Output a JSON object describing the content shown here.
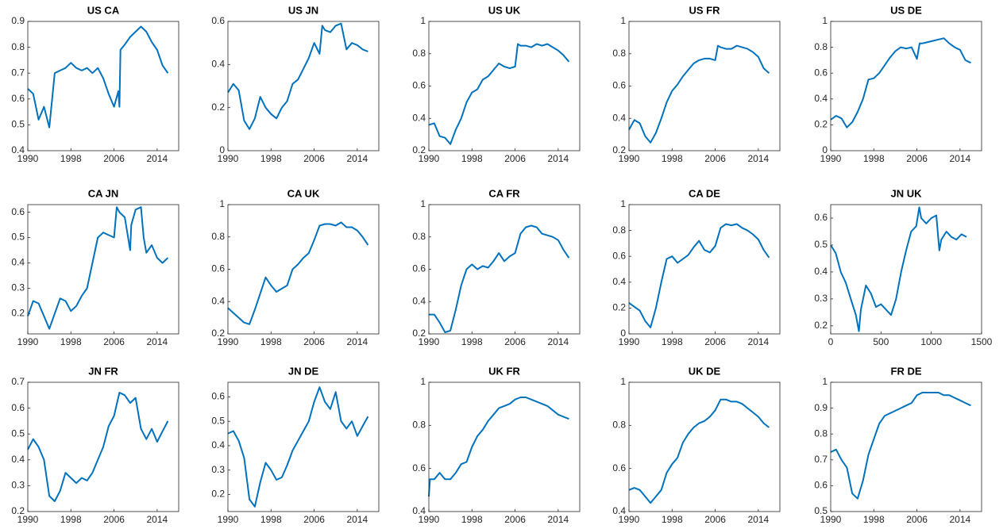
{
  "chart_data": [
    {
      "type": "line",
      "title": "US CA",
      "color": "#0072bd",
      "xlim": [
        1990,
        2018
      ],
      "xticks": [
        1990,
        1998,
        2006,
        2014
      ],
      "ylim": [
        0.4,
        0.9
      ],
      "yticks": [
        0.4,
        0.5,
        0.6,
        0.7,
        0.8,
        0.9
      ],
      "x": [
        1990,
        1991,
        1992,
        1993,
        1994,
        1995,
        1996,
        1997,
        1998,
        1999,
        2000,
        2001,
        2002,
        2003,
        2004,
        2005,
        2006,
        2006.8,
        2007,
        2007.2,
        2008,
        2009,
        2010,
        2011,
        2012,
        2013,
        2014,
        2015,
        2016
      ],
      "values": [
        0.64,
        0.62,
        0.52,
        0.57,
        0.49,
        0.7,
        0.71,
        0.72,
        0.74,
        0.72,
        0.71,
        0.72,
        0.7,
        0.72,
        0.68,
        0.62,
        0.57,
        0.63,
        0.57,
        0.79,
        0.81,
        0.84,
        0.86,
        0.88,
        0.86,
        0.82,
        0.79,
        0.73,
        0.7
      ]
    },
    {
      "type": "line",
      "title": "US JN",
      "color": "#0072bd",
      "xlim": [
        1990,
        2018
      ],
      "xticks": [
        1990,
        1998,
        2006,
        2014
      ],
      "ylim": [
        0,
        0.6
      ],
      "yticks": [
        0,
        0.2,
        0.4,
        0.6
      ],
      "x": [
        1990,
        1991,
        1992,
        1993,
        1994,
        1995,
        1996,
        1997,
        1998,
        1999,
        2000,
        2001,
        2002,
        2003,
        2004,
        2005,
        2006,
        2007,
        2007.5,
        2008,
        2009,
        2010,
        2011,
        2012,
        2013,
        2014,
        2015,
        2016
      ],
      "values": [
        0.27,
        0.31,
        0.28,
        0.14,
        0.1,
        0.15,
        0.25,
        0.2,
        0.17,
        0.15,
        0.2,
        0.23,
        0.31,
        0.33,
        0.38,
        0.43,
        0.5,
        0.45,
        0.58,
        0.56,
        0.55,
        0.58,
        0.59,
        0.47,
        0.5,
        0.49,
        0.47,
        0.46
      ]
    },
    {
      "type": "line",
      "title": "US UK",
      "color": "#0072bd",
      "xlim": [
        1990,
        2018
      ],
      "xticks": [
        1990,
        1998,
        2006,
        2014
      ],
      "ylim": [
        0.2,
        1
      ],
      "yticks": [
        0.2,
        0.4,
        0.6,
        0.8,
        1
      ],
      "x": [
        1990,
        1991,
        1992,
        1993,
        1994,
        1995,
        1996,
        1997,
        1998,
        1999,
        2000,
        2001,
        2002,
        2003,
        2004,
        2005,
        2006,
        2006.5,
        2007,
        2008,
        2009,
        2010,
        2011,
        2012,
        2013,
        2014,
        2015,
        2016
      ],
      "values": [
        0.36,
        0.37,
        0.29,
        0.28,
        0.24,
        0.33,
        0.4,
        0.5,
        0.56,
        0.58,
        0.64,
        0.66,
        0.7,
        0.74,
        0.72,
        0.71,
        0.72,
        0.86,
        0.85,
        0.85,
        0.84,
        0.86,
        0.85,
        0.86,
        0.84,
        0.82,
        0.79,
        0.75
      ]
    },
    {
      "type": "line",
      "title": "US FR",
      "color": "#0072bd",
      "xlim": [
        1990,
        2018
      ],
      "xticks": [
        1990,
        1998,
        2006,
        2014
      ],
      "ylim": [
        0.2,
        1
      ],
      "yticks": [
        0.2,
        0.4,
        0.6,
        0.8,
        1
      ],
      "x": [
        1990,
        1991,
        1992,
        1993,
        1994,
        1995,
        1996,
        1997,
        1998,
        1999,
        2000,
        2001,
        2002,
        2003,
        2004,
        2005,
        2006,
        2006.5,
        2007,
        2008,
        2009,
        2010,
        2011,
        2012,
        2013,
        2014,
        2015,
        2016
      ],
      "values": [
        0.33,
        0.39,
        0.37,
        0.29,
        0.25,
        0.31,
        0.4,
        0.5,
        0.57,
        0.61,
        0.66,
        0.7,
        0.74,
        0.76,
        0.77,
        0.77,
        0.76,
        0.85,
        0.84,
        0.83,
        0.83,
        0.85,
        0.84,
        0.83,
        0.81,
        0.78,
        0.71,
        0.68
      ]
    },
    {
      "type": "line",
      "title": "US DE",
      "color": "#0072bd",
      "xlim": [
        1990,
        2018
      ],
      "xticks": [
        1990,
        1998,
        2006,
        2014
      ],
      "ylim": [
        0,
        1
      ],
      "yticks": [
        0,
        0.2,
        0.4,
        0.6,
        0.8,
        1
      ],
      "x": [
        1990,
        1991,
        1992,
        1993,
        1994,
        1995,
        1996,
        1997,
        1998,
        1999,
        2000,
        2001,
        2002,
        2003,
        2004,
        2005,
        2006,
        2006.5,
        2007,
        2008,
        2009,
        2010,
        2011,
        2012,
        2013,
        2014,
        2015,
        2016
      ],
      "values": [
        0.24,
        0.27,
        0.25,
        0.18,
        0.22,
        0.3,
        0.4,
        0.55,
        0.56,
        0.6,
        0.66,
        0.72,
        0.77,
        0.8,
        0.79,
        0.8,
        0.71,
        0.83,
        0.83,
        0.84,
        0.85,
        0.86,
        0.87,
        0.83,
        0.8,
        0.78,
        0.7,
        0.68
      ]
    },
    {
      "type": "line",
      "title": "CA JN",
      "color": "#0072bd",
      "xlim": [
        1990,
        2018
      ],
      "xticks": [
        1990,
        1998,
        2006,
        2014
      ],
      "ylim": [
        0.12,
        0.63
      ],
      "yticks": [
        0.2,
        0.3,
        0.4,
        0.5,
        0.6
      ],
      "x": [
        1990,
        1991,
        1992,
        1993,
        1994,
        1995,
        1996,
        1997,
        1998,
        1999,
        2000,
        2001,
        2002,
        2003,
        2004,
        2005,
        2006,
        2006.5,
        2007,
        2008,
        2009,
        2009.2,
        2010,
        2011,
        2011.5,
        2012,
        2013,
        2014,
        2015,
        2016
      ],
      "values": [
        0.19,
        0.25,
        0.24,
        0.19,
        0.14,
        0.2,
        0.26,
        0.25,
        0.21,
        0.23,
        0.27,
        0.3,
        0.4,
        0.5,
        0.52,
        0.51,
        0.5,
        0.62,
        0.6,
        0.58,
        0.45,
        0.55,
        0.61,
        0.62,
        0.5,
        0.44,
        0.47,
        0.42,
        0.4,
        0.42
      ]
    },
    {
      "type": "line",
      "title": "CA UK",
      "color": "#0072bd",
      "xlim": [
        1990,
        2018
      ],
      "xticks": [
        1990,
        1998,
        2006,
        2014
      ],
      "ylim": [
        0.2,
        1
      ],
      "yticks": [
        0.2,
        0.4,
        0.6,
        0.8,
        1
      ],
      "x": [
        1990,
        1991,
        1992,
        1993,
        1994,
        1995,
        1996,
        1997,
        1998,
        1999,
        2000,
        2001,
        2002,
        2003,
        2004,
        2005,
        2006,
        2007,
        2008,
        2009,
        2010,
        2011,
        2012,
        2013,
        2014,
        2015,
        2016
      ],
      "values": [
        0.36,
        0.33,
        0.3,
        0.27,
        0.26,
        0.35,
        0.45,
        0.55,
        0.5,
        0.46,
        0.48,
        0.5,
        0.6,
        0.63,
        0.67,
        0.7,
        0.78,
        0.87,
        0.88,
        0.88,
        0.87,
        0.89,
        0.86,
        0.86,
        0.84,
        0.8,
        0.75
      ]
    },
    {
      "type": "line",
      "title": "CA FR",
      "color": "#0072bd",
      "xlim": [
        1990,
        2018
      ],
      "xticks": [
        1990,
        1998,
        2006,
        2014
      ],
      "ylim": [
        0.2,
        1
      ],
      "yticks": [
        0.2,
        0.4,
        0.6,
        0.8,
        1
      ],
      "x": [
        1990,
        1991,
        1992,
        1993,
        1994,
        1995,
        1996,
        1997,
        1998,
        1999,
        2000,
        2001,
        2002,
        2003,
        2004,
        2005,
        2006,
        2007,
        2008,
        2009,
        2010,
        2011,
        2012,
        2013,
        2014,
        2015,
        2016
      ],
      "values": [
        0.32,
        0.32,
        0.27,
        0.21,
        0.22,
        0.35,
        0.5,
        0.6,
        0.63,
        0.6,
        0.62,
        0.61,
        0.65,
        0.7,
        0.65,
        0.68,
        0.7,
        0.82,
        0.86,
        0.87,
        0.86,
        0.82,
        0.81,
        0.8,
        0.78,
        0.72,
        0.67
      ]
    },
    {
      "type": "line",
      "title": "CA DE",
      "color": "#0072bd",
      "xlim": [
        1990,
        2018
      ],
      "xticks": [
        1990,
        1998,
        2006,
        2014
      ],
      "ylim": [
        0,
        1
      ],
      "yticks": [
        0,
        0.2,
        0.4,
        0.6,
        0.8,
        1
      ],
      "x": [
        1990,
        1991,
        1992,
        1993,
        1994,
        1995,
        1996,
        1997,
        1998,
        1999,
        2000,
        2001,
        2002,
        2003,
        2004,
        2005,
        2006,
        2007,
        2008,
        2009,
        2010,
        2011,
        2012,
        2013,
        2014,
        2015,
        2016
      ],
      "values": [
        0.24,
        0.21,
        0.18,
        0.1,
        0.05,
        0.2,
        0.4,
        0.58,
        0.6,
        0.55,
        0.58,
        0.61,
        0.67,
        0.72,
        0.65,
        0.63,
        0.68,
        0.82,
        0.85,
        0.84,
        0.85,
        0.82,
        0.8,
        0.77,
        0.73,
        0.65,
        0.59
      ]
    },
    {
      "type": "line",
      "title": "JN UK",
      "color": "#0072bd",
      "xlim": [
        0,
        1500
      ],
      "xticks": [
        0,
        500,
        1000,
        1500
      ],
      "ylim": [
        0.17,
        0.65
      ],
      "yticks": [
        0.2,
        0.3,
        0.4,
        0.5,
        0.6
      ],
      "x": [
        0,
        50,
        100,
        150,
        200,
        250,
        280,
        300,
        350,
        400,
        450,
        500,
        550,
        600,
        650,
        700,
        750,
        800,
        850,
        880,
        900,
        950,
        1000,
        1050,
        1080,
        1100,
        1150,
        1200,
        1250,
        1300,
        1350
      ],
      "values": [
        0.5,
        0.47,
        0.4,
        0.36,
        0.3,
        0.24,
        0.18,
        0.26,
        0.35,
        0.32,
        0.27,
        0.28,
        0.26,
        0.24,
        0.3,
        0.4,
        0.48,
        0.55,
        0.57,
        0.64,
        0.6,
        0.58,
        0.6,
        0.61,
        0.48,
        0.52,
        0.55,
        0.53,
        0.52,
        0.54,
        0.53
      ]
    },
    {
      "type": "line",
      "title": "JN FR",
      "color": "#0072bd",
      "xlim": [
        1990,
        2018
      ],
      "xticks": [
        1990,
        1998,
        2006,
        2014
      ],
      "ylim": [
        0.2,
        0.7
      ],
      "yticks": [
        0.2,
        0.3,
        0.4,
        0.5,
        0.6,
        0.7
      ],
      "x": [
        1990,
        1991,
        1992,
        1993,
        1994,
        1995,
        1996,
        1997,
        1998,
        1999,
        2000,
        2001,
        2002,
        2003,
        2004,
        2005,
        2006,
        2007,
        2008,
        2009,
        2010,
        2011,
        2012,
        2013,
        2014,
        2015,
        2016
      ],
      "values": [
        0.44,
        0.48,
        0.45,
        0.4,
        0.26,
        0.24,
        0.28,
        0.35,
        0.33,
        0.31,
        0.33,
        0.32,
        0.35,
        0.4,
        0.45,
        0.53,
        0.57,
        0.66,
        0.65,
        0.62,
        0.64,
        0.52,
        0.48,
        0.52,
        0.47,
        0.51,
        0.55
      ]
    },
    {
      "type": "line",
      "title": "JN DE",
      "color": "#0072bd",
      "xlim": [
        1990,
        2018
      ],
      "xticks": [
        1990,
        1998,
        2006,
        2014
      ],
      "ylim": [
        0.13,
        0.66
      ],
      "yticks": [
        0.2,
        0.3,
        0.4,
        0.5,
        0.6
      ],
      "x": [
        1990,
        1991,
        1992,
        1993,
        1994,
        1995,
        1996,
        1997,
        1998,
        1999,
        2000,
        2001,
        2002,
        2003,
        2004,
        2005,
        2006,
        2007,
        2008,
        2009,
        2010,
        2011,
        2012,
        2013,
        2014,
        2015,
        2016
      ],
      "values": [
        0.45,
        0.46,
        0.42,
        0.35,
        0.18,
        0.15,
        0.25,
        0.33,
        0.3,
        0.26,
        0.27,
        0.32,
        0.38,
        0.42,
        0.46,
        0.5,
        0.58,
        0.64,
        0.58,
        0.55,
        0.62,
        0.5,
        0.47,
        0.5,
        0.44,
        0.48,
        0.52
      ]
    },
    {
      "type": "line",
      "title": "UK FR",
      "color": "#0072bd",
      "xlim": [
        1990,
        2018
      ],
      "xticks": [
        1990,
        1998,
        2006,
        2014
      ],
      "ylim": [
        0.4,
        1
      ],
      "yticks": [
        0.4,
        0.6,
        0.8,
        1
      ],
      "x": [
        1990,
        1990.2,
        1991,
        1992,
        1993,
        1994,
        1995,
        1996,
        1997,
        1998,
        1999,
        2000,
        2001,
        2002,
        2003,
        2004,
        2005,
        2006,
        2007,
        2008,
        2009,
        2010,
        2011,
        2012,
        2013,
        2014,
        2015,
        2016
      ],
      "values": [
        0.47,
        0.55,
        0.55,
        0.58,
        0.55,
        0.55,
        0.58,
        0.62,
        0.63,
        0.7,
        0.75,
        0.78,
        0.82,
        0.85,
        0.88,
        0.89,
        0.9,
        0.92,
        0.93,
        0.93,
        0.92,
        0.91,
        0.9,
        0.89,
        0.87,
        0.85,
        0.84,
        0.83
      ]
    },
    {
      "type": "line",
      "title": "UK DE",
      "color": "#0072bd",
      "xlim": [
        1990,
        2018
      ],
      "xticks": [
        1990,
        1998,
        2006,
        2014
      ],
      "ylim": [
        0.4,
        1
      ],
      "yticks": [
        0.4,
        0.6,
        0.8,
        1
      ],
      "x": [
        1990,
        1991,
        1992,
        1993,
        1994,
        1995,
        1996,
        1997,
        1998,
        1999,
        2000,
        2001,
        2002,
        2003,
        2004,
        2005,
        2006,
        2007,
        2008,
        2009,
        2010,
        2011,
        2012,
        2013,
        2014,
        2015,
        2016
      ],
      "values": [
        0.5,
        0.51,
        0.5,
        0.47,
        0.44,
        0.47,
        0.5,
        0.58,
        0.62,
        0.65,
        0.72,
        0.76,
        0.79,
        0.81,
        0.82,
        0.84,
        0.87,
        0.92,
        0.92,
        0.91,
        0.91,
        0.9,
        0.88,
        0.86,
        0.84,
        0.81,
        0.79
      ]
    },
    {
      "type": "line",
      "title": "FR DE",
      "color": "#0072bd",
      "xlim": [
        1990,
        2018
      ],
      "xticks": [
        1990,
        1998,
        2006,
        2014
      ],
      "ylim": [
        0.5,
        1
      ],
      "yticks": [
        0.5,
        0.6,
        0.7,
        0.8,
        0.9,
        1
      ],
      "x": [
        1990,
        1991,
        1992,
        1993,
        1994,
        1995,
        1996,
        1997,
        1998,
        1999,
        2000,
        2001,
        2002,
        2003,
        2004,
        2005,
        2006,
        2007,
        2008,
        2009,
        2010,
        2011,
        2012,
        2013,
        2014,
        2015,
        2016
      ],
      "values": [
        0.73,
        0.74,
        0.7,
        0.67,
        0.57,
        0.55,
        0.62,
        0.72,
        0.78,
        0.84,
        0.87,
        0.88,
        0.89,
        0.9,
        0.91,
        0.92,
        0.95,
        0.96,
        0.96,
        0.96,
        0.96,
        0.95,
        0.95,
        0.94,
        0.93,
        0.92,
        0.91
      ]
    }
  ]
}
